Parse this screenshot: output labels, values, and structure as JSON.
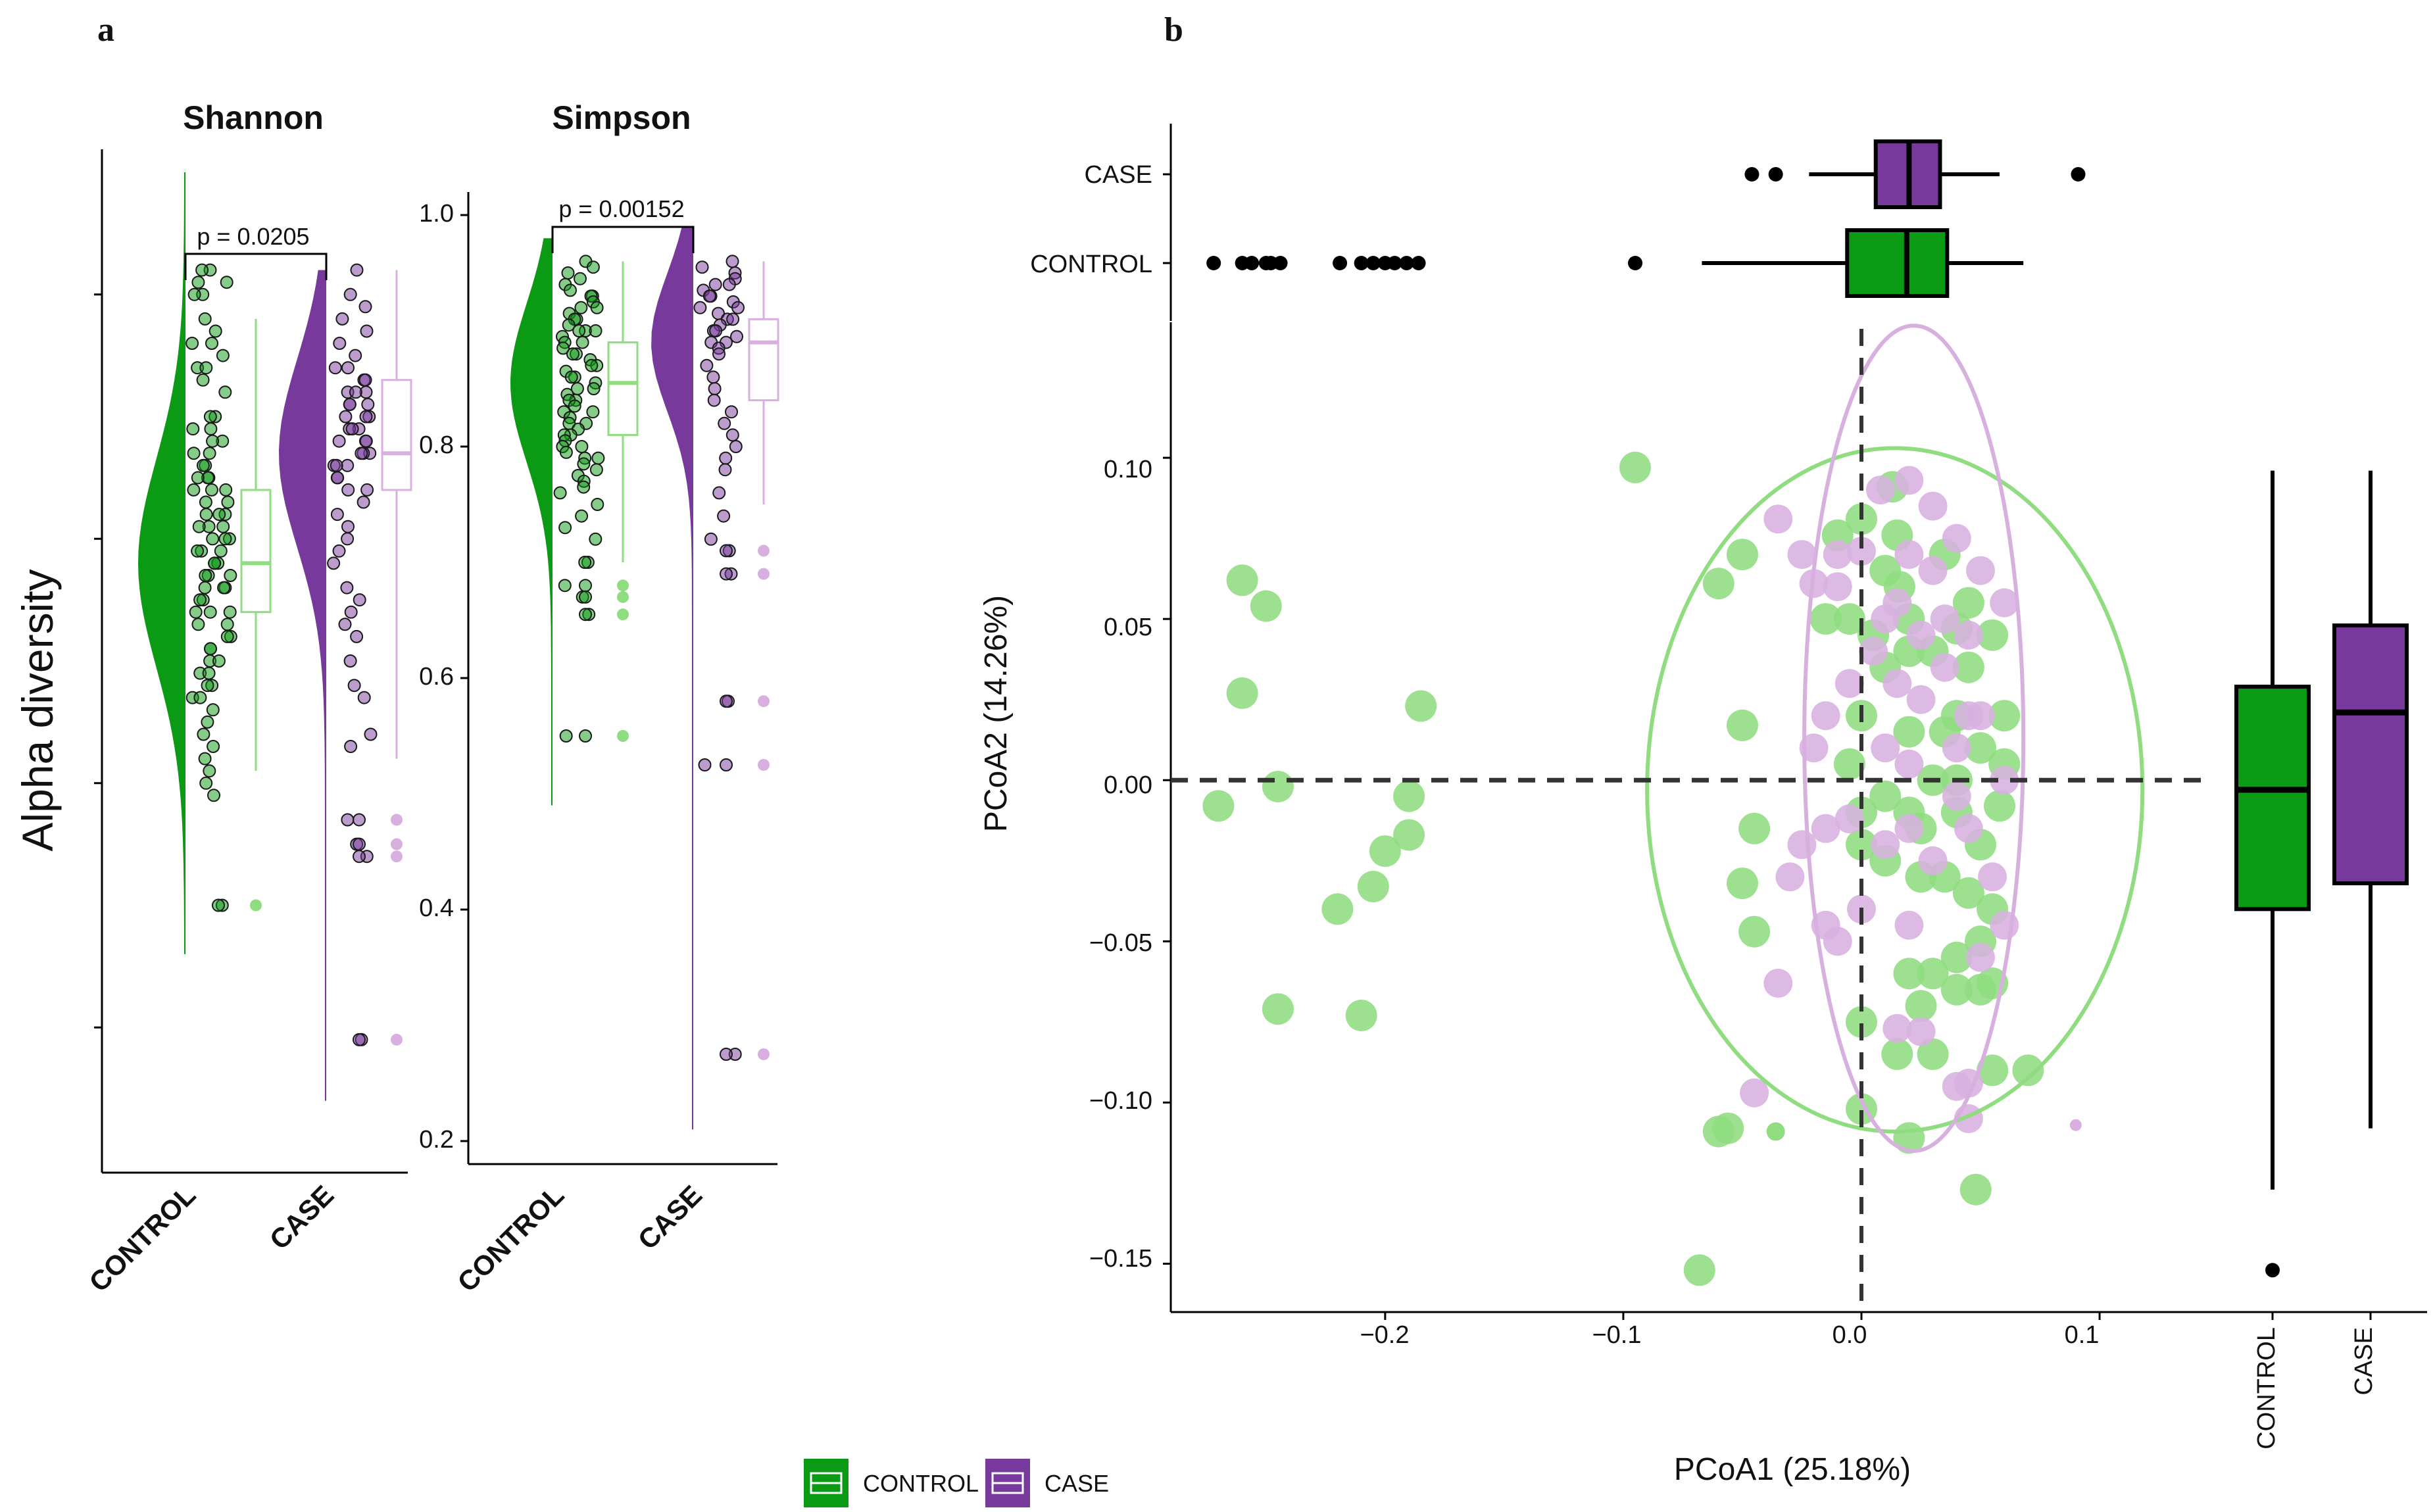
{
  "colors": {
    "control": "#0b9a14",
    "control_light": "#90dc80",
    "case": "#773a9c",
    "case_light": "#d7b0df",
    "axis": "#000000"
  },
  "panel_a": {
    "label": "a",
    "ylabel": "Alpha diversity",
    "groups": [
      "CONTROL",
      "CASE"
    ],
    "shannon": {
      "title": "Shannon",
      "pvalue": "p = 0.0205",
      "ylim": [
        0,
        4
      ],
      "control": {
        "box": {
          "q1": 2.2,
          "median": 2.4,
          "q3": 2.7,
          "min": 1.55,
          "max": 3.4
        },
        "outliers": [
          1.0
        ],
        "density_range": [
          0.8,
          4.0
        ],
        "points": [
          3.6,
          3.6,
          3.55,
          3.55,
          3.5,
          3.5,
          3.4,
          3.35,
          3.3,
          3.3,
          3.25,
          3.2,
          3.2,
          3.15,
          3.1,
          3.0,
          3.0,
          2.95,
          2.95,
          2.9,
          2.9,
          2.85,
          2.85,
          2.8,
          2.8,
          2.75,
          2.75,
          2.75,
          2.7,
          2.7,
          2.7,
          2.65,
          2.65,
          2.6,
          2.6,
          2.6,
          2.55,
          2.55,
          2.55,
          2.5,
          2.5,
          2.5,
          2.45,
          2.45,
          2.45,
          2.4,
          2.4,
          2.4,
          2.35,
          2.35,
          2.35,
          2.3,
          2.3,
          2.3,
          2.25,
          2.25,
          2.2,
          2.2,
          2.2,
          2.15,
          2.15,
          2.1,
          2.1,
          2.05,
          2.05,
          2.0,
          2.0,
          1.95,
          1.95,
          1.9,
          1.9,
          1.85,
          1.85,
          1.8,
          1.75,
          1.7,
          1.65,
          1.6,
          1.55,
          1.5,
          1.45,
          1.0
        ]
      },
      "case": {
        "box": {
          "q1": 2.7,
          "median": 2.85,
          "q3": 3.15,
          "min": 1.6,
          "max": 3.6
        },
        "outliers": [
          1.2,
          1.25,
          1.35,
          0.45
        ],
        "density_range": [
          0.2,
          3.6
        ],
        "points": [
          3.6,
          3.5,
          3.45,
          3.4,
          3.35,
          3.3,
          3.25,
          3.2,
          3.2,
          3.15,
          3.15,
          3.1,
          3.1,
          3.1,
          3.05,
          3.05,
          3.05,
          3.0,
          3.0,
          3.0,
          2.95,
          2.95,
          2.95,
          2.9,
          2.9,
          2.9,
          2.85,
          2.85,
          2.85,
          2.8,
          2.8,
          2.8,
          2.75,
          2.75,
          2.7,
          2.7,
          2.65,
          2.6,
          2.55,
          2.5,
          2.45,
          2.4,
          2.3,
          2.25,
          2.2,
          2.15,
          2.1,
          2.0,
          1.9,
          1.85,
          1.7,
          1.65,
          1.35,
          1.25,
          1.2,
          0.45
        ]
      }
    },
    "simpson": {
      "title": "Simpson",
      "pvalue": "p = 0.00152",
      "ylim": [
        0.2,
        1.0
      ],
      "yticks": [
        "0.2",
        "0.4",
        "0.6",
        "0.8",
        "1.0"
      ],
      "control": {
        "box": {
          "q1": 0.81,
          "median": 0.855,
          "q3": 0.89,
          "min": 0.7,
          "max": 0.96
        },
        "outliers": [
          0.68,
          0.67,
          0.655,
          0.55
        ],
        "density_range": [
          0.49,
          0.98
        ],
        "points": [
          0.96,
          0.955,
          0.95,
          0.945,
          0.94,
          0.935,
          0.93,
          0.93,
          0.925,
          0.92,
          0.92,
          0.915,
          0.91,
          0.91,
          0.905,
          0.9,
          0.9,
          0.9,
          0.895,
          0.89,
          0.89,
          0.885,
          0.88,
          0.88,
          0.875,
          0.87,
          0.87,
          0.865,
          0.86,
          0.86,
          0.855,
          0.85,
          0.85,
          0.845,
          0.84,
          0.84,
          0.835,
          0.83,
          0.83,
          0.825,
          0.82,
          0.82,
          0.815,
          0.81,
          0.81,
          0.805,
          0.8,
          0.8,
          0.795,
          0.79,
          0.79,
          0.785,
          0.78,
          0.775,
          0.77,
          0.765,
          0.76,
          0.75,
          0.74,
          0.73,
          0.72,
          0.7,
          0.7,
          0.68,
          0.67,
          0.655,
          0.55
        ]
      },
      "case": {
        "box": {
          "q1": 0.84,
          "median": 0.89,
          "q3": 0.91,
          "min": 0.75,
          "max": 0.96
        },
        "outliers": [
          0.71,
          0.69,
          0.58,
          0.525,
          0.275
        ],
        "density_range": [
          0.21,
          0.99
        ],
        "points": [
          0.96,
          0.955,
          0.95,
          0.945,
          0.94,
          0.94,
          0.935,
          0.93,
          0.93,
          0.925,
          0.92,
          0.92,
          0.915,
          0.91,
          0.91,
          0.905,
          0.9,
          0.9,
          0.895,
          0.89,
          0.89,
          0.885,
          0.88,
          0.87,
          0.86,
          0.85,
          0.84,
          0.83,
          0.82,
          0.81,
          0.8,
          0.79,
          0.78,
          0.76,
          0.74,
          0.72,
          0.71,
          0.69,
          0.58,
          0.525,
          0.275
        ]
      }
    }
  },
  "panel_b": {
    "label": "b",
    "xlabel": "PCoA1 (25.18%)",
    "ylabel": "PCoA2 (14.26%)",
    "xlim": [
      -0.29,
      0.145
    ],
    "ylim": [
      -0.165,
      0.14
    ],
    "xticks": [
      {
        "v": -0.2,
        "label": "−0.2"
      },
      {
        "v": -0.1,
        "label": "−0.1"
      },
      {
        "v": 0.0,
        "label": "0.0"
      },
      {
        "v": 0.1,
        "label": "0.1"
      }
    ],
    "yticks": [
      {
        "v": 0.1,
        "label": "0.10"
      },
      {
        "v": 0.05,
        "label": "0.05"
      },
      {
        "v": 0.0,
        "label": "0.00"
      },
      {
        "v": -0.05,
        "label": "−0.05"
      },
      {
        "v": -0.1,
        "label": "−0.10"
      },
      {
        "v": -0.15,
        "label": "−0.15"
      }
    ],
    "ellipses": {
      "control": {
        "cx": 0.014,
        "cy": -0.003,
        "rx": 0.104,
        "ry": 0.106
      },
      "case": {
        "cx": 0.022,
        "cy": 0.013,
        "rx": 0.046,
        "ry": 0.128
      }
    },
    "control_points": [
      [
        -0.26,
        0.062
      ],
      [
        -0.25,
        0.054
      ],
      [
        -0.26,
        0.027
      ],
      [
        -0.27,
        -0.008
      ],
      [
        -0.245,
        -0.002
      ],
      [
        -0.19,
        -0.005
      ],
      [
        -0.185,
        0.023
      ],
      [
        -0.19,
        -0.017
      ],
      [
        -0.2,
        -0.022
      ],
      [
        -0.205,
        -0.033
      ],
      [
        -0.22,
        -0.04
      ],
      [
        -0.245,
        -0.071
      ],
      [
        -0.21,
        -0.073
      ],
      [
        -0.095,
        0.097
      ],
      [
        -0.05,
        0.07
      ],
      [
        -0.06,
        0.061
      ],
      [
        -0.045,
        -0.047
      ],
      [
        -0.05,
        -0.032
      ],
      [
        -0.045,
        -0.015
      ],
      [
        -0.05,
        0.017
      ],
      [
        -0.056,
        -0.108
      ],
      [
        -0.06,
        -0.109
      ],
      [
        -0.068,
        -0.152
      ],
      [
        -0.01,
        0.076
      ],
      [
        0.0,
        0.081
      ],
      [
        0.013,
        0.091
      ],
      [
        0.015,
        0.076
      ],
      [
        0.01,
        0.065
      ],
      [
        0.016,
        0.06
      ],
      [
        0.02,
        0.05
      ],
      [
        -0.005,
        0.05
      ],
      [
        -0.015,
        0.05
      ],
      [
        0.005,
        0.045
      ],
      [
        0.01,
        0.035
      ],
      [
        0.02,
        0.04
      ],
      [
        0.03,
        0.04
      ],
      [
        0.04,
        0.02
      ],
      [
        0.045,
        0.035
      ],
      [
        0.055,
        0.045
      ],
      [
        0.06,
        0.02
      ],
      [
        0.05,
        0.01
      ],
      [
        0.04,
        0.0
      ],
      [
        0.03,
        0.0
      ],
      [
        0.02,
        -0.01
      ],
      [
        0.01,
        -0.005
      ],
      [
        0.0,
        -0.01
      ],
      [
        -0.005,
        0.005
      ],
      [
        0.0,
        -0.02
      ],
      [
        0.01,
        -0.025
      ],
      [
        0.025,
        -0.03
      ],
      [
        0.035,
        -0.03
      ],
      [
        0.045,
        -0.035
      ],
      [
        0.055,
        -0.04
      ],
      [
        0.05,
        -0.05
      ],
      [
        0.04,
        -0.055
      ],
      [
        0.03,
        -0.06
      ],
      [
        0.02,
        -0.06
      ],
      [
        0.025,
        -0.07
      ],
      [
        0.04,
        -0.065
      ],
      [
        0.05,
        -0.065
      ],
      [
        0.055,
        -0.063
      ],
      [
        0.0,
        -0.075
      ],
      [
        0.015,
        -0.085
      ],
      [
        0.03,
        -0.085
      ],
      [
        0.055,
        -0.09
      ],
      [
        0.07,
        -0.09
      ],
      [
        0.0,
        -0.102
      ],
      [
        0.02,
        -0.111
      ],
      [
        0.048,
        -0.127
      ],
      [
        0.0,
        0.02
      ],
      [
        0.02,
        0.015
      ],
      [
        0.035,
        0.015
      ],
      [
        0.06,
        0.005
      ],
      [
        0.04,
        -0.01
      ],
      [
        0.05,
        -0.02
      ],
      [
        0.025,
        -0.015
      ],
      [
        0.035,
        0.07
      ],
      [
        0.045,
        0.055
      ],
      [
        0.04,
        0.047
      ],
      [
        0.058,
        -0.008
      ]
    ],
    "case_points": [
      [
        -0.035,
        0.081
      ],
      [
        -0.025,
        0.07
      ],
      [
        -0.02,
        0.061
      ],
      [
        -0.01,
        0.07
      ],
      [
        0.0,
        0.071
      ],
      [
        0.008,
        0.09
      ],
      [
        0.02,
        0.093
      ],
      [
        0.03,
        0.085
      ],
      [
        0.04,
        0.075
      ],
      [
        0.05,
        0.065
      ],
      [
        0.06,
        0.055
      ],
      [
        0.03,
        0.065
      ],
      [
        0.015,
        0.055
      ],
      [
        0.035,
        0.05
      ],
      [
        0.045,
        0.045
      ],
      [
        0.035,
        0.035
      ],
      [
        0.025,
        0.025
      ],
      [
        0.015,
        0.03
      ],
      [
        0.005,
        0.04
      ],
      [
        -0.005,
        0.03
      ],
      [
        -0.015,
        0.02
      ],
      [
        -0.02,
        0.01
      ],
      [
        0.01,
        0.01
      ],
      [
        0.02,
        0.005
      ],
      [
        0.04,
        0.01
      ],
      [
        0.05,
        0.02
      ],
      [
        0.06,
        0.0
      ],
      [
        0.04,
        -0.005
      ],
      [
        0.02,
        -0.015
      ],
      [
        0.01,
        -0.02
      ],
      [
        -0.005,
        -0.012
      ],
      [
        -0.015,
        -0.015
      ],
      [
        -0.025,
        -0.02
      ],
      [
        0.0,
        -0.04
      ],
      [
        0.02,
        -0.045
      ],
      [
        0.05,
        -0.055
      ],
      [
        0.06,
        -0.045
      ],
      [
        -0.015,
        -0.045
      ],
      [
        -0.01,
        -0.05
      ],
      [
        -0.035,
        -0.063
      ],
      [
        -0.045,
        -0.097
      ],
      [
        0.015,
        -0.077
      ],
      [
        0.025,
        -0.078
      ],
      [
        0.045,
        -0.094
      ],
      [
        0.04,
        -0.095
      ],
      [
        0.045,
        -0.105
      ],
      [
        0.045,
        -0.015
      ],
      [
        0.03,
        -0.025
      ],
      [
        0.055,
        -0.03
      ],
      [
        -0.01,
        0.06
      ],
      [
        0.02,
        0.07
      ],
      [
        0.01,
        0.05
      ],
      [
        0.025,
        0.045
      ],
      [
        -0.03,
        -0.03
      ],
      [
        0.045,
        0.02
      ]
    ],
    "small_points": [
      {
        "x": -0.036,
        "y": -0.109,
        "group": "control"
      },
      {
        "x": 0.09,
        "y": -0.107,
        "group": "case"
      }
    ],
    "top_box": {
      "control": {
        "label": "CONTROL",
        "q1": -0.006,
        "median": 0.019,
        "q3": 0.036,
        "min": -0.067,
        "max": 0.068,
        "outliers": [
          -0.272,
          -0.26,
          -0.256,
          -0.25,
          -0.248,
          -0.244,
          -0.219,
          -0.21,
          -0.205,
          -0.2,
          -0.196,
          -0.191,
          -0.186,
          -0.095
        ]
      },
      "case": {
        "label": "CASE",
        "q1": 0.006,
        "median": 0.02,
        "q3": 0.033,
        "min": -0.022,
        "max": 0.058,
        "outliers": [
          -0.046,
          -0.036,
          0.091
        ]
      }
    },
    "right_box": {
      "labels": [
        "CONTROL",
        "CASE"
      ],
      "control": {
        "q1": -0.04,
        "median": -0.003,
        "q3": 0.029,
        "min": -0.127,
        "max": 0.096,
        "outliers": [
          -0.152
        ]
      },
      "case": {
        "q1": -0.032,
        "median": 0.021,
        "q3": 0.048,
        "min": -0.108,
        "max": 0.096,
        "outliers": []
      }
    }
  },
  "legend": {
    "items": [
      {
        "label": "CONTROL",
        "group": "control"
      },
      {
        "label": "CASE",
        "group": "case"
      }
    ]
  }
}
